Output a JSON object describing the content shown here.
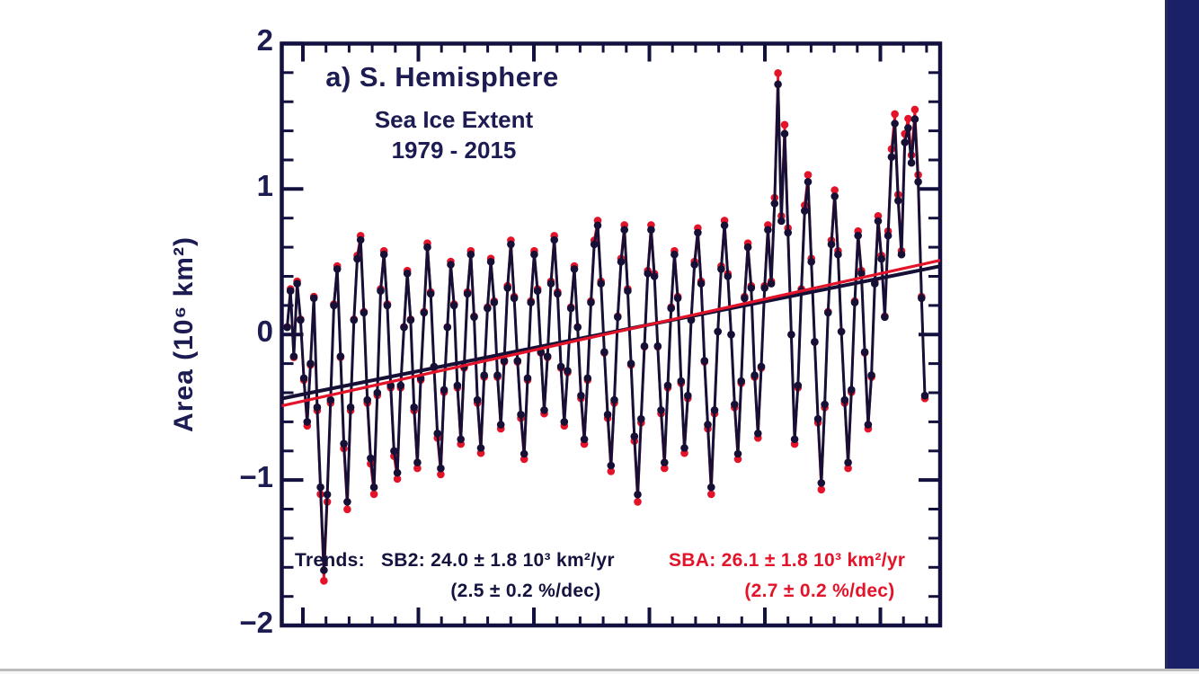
{
  "figure": {
    "title": "a)  S. Hemisphere",
    "subtitle": "Sea Ice Extent",
    "period": "1979 - 2015",
    "ylabel": "Area (10⁶ km²)",
    "colors": {
      "navy_text": "#1c1b52",
      "frame": "#12103e",
      "sb2_dark": "#171036",
      "sba_red": "#e3142a",
      "right_band": "#1a2167",
      "bottom_rule_grey": "#bcbcbc"
    }
  },
  "annotations": {
    "trends_label": "Trends:",
    "sb2_line1": "SB2: 24.0 ± 1.8 10³ km²/yr",
    "sb2_line2": "(2.5 ± 0.2  %/dec)",
    "sba_line1": "SBA: 26.1 ± 1.8 10³ km²/yr",
    "sba_line2": "(2.7 ± 0.2  %/dec)"
  },
  "chart_data": {
    "type": "line",
    "title": "a) S. Hemisphere — Sea Ice Extent 1979 - 2015",
    "ylabel": "Area (10⁶ km²)",
    "ylim": [
      -2,
      2
    ],
    "y_major_ticks": [
      2,
      1,
      0,
      -1,
      -2
    ],
    "y_minor_step": 0.2,
    "x_range_years": [
      1979,
      2016.3
    ],
    "x_ticks_labeled": false,
    "grid": false,
    "legend": "annotation text inside plot (SB2 black, SBA red)",
    "series": [
      {
        "name": "SB2",
        "color": "#171036",
        "kind": "monthly anomaly, dots + connecting line",
        "x_start_year": 1979.0,
        "x_end_year": 2015.5,
        "values": [
          0.05,
          0.3,
          -0.15,
          0.35,
          0.1,
          -0.3,
          -0.6,
          -0.2,
          0.25,
          -0.5,
          -1.05,
          -1.62,
          -1.1,
          -0.45,
          0.2,
          0.45,
          -0.15,
          -0.75,
          -1.15,
          -0.5,
          0.1,
          0.52,
          0.65,
          0.15,
          -0.45,
          -0.85,
          -1.05,
          -0.4,
          0.3,
          0.55,
          0.2,
          -0.35,
          -0.8,
          -0.95,
          -0.35,
          0.05,
          0.42,
          0.1,
          -0.5,
          -0.88,
          -0.3,
          0.15,
          0.6,
          0.28,
          -0.22,
          -0.68,
          -0.92,
          -0.38,
          0.05,
          0.48,
          0.2,
          -0.35,
          -0.72,
          -0.22,
          0.28,
          0.55,
          0.12,
          -0.45,
          -0.78,
          -0.28,
          0.18,
          0.5,
          0.22,
          -0.28,
          -0.62,
          -0.18,
          0.32,
          0.62,
          0.25,
          -0.18,
          -0.55,
          -0.82,
          -0.3,
          0.22,
          0.55,
          0.3,
          -0.12,
          -0.52,
          -0.15,
          0.35,
          0.65,
          0.28,
          -0.22,
          -0.6,
          -0.25,
          0.18,
          0.45,
          0.05,
          -0.42,
          -0.72,
          -0.3,
          0.22,
          0.62,
          0.75,
          0.35,
          -0.12,
          -0.55,
          -0.9,
          -0.45,
          0.12,
          0.5,
          0.72,
          0.3,
          -0.2,
          -0.7,
          -1.1,
          -0.58,
          -0.08,
          0.42,
          0.72,
          0.4,
          -0.08,
          -0.52,
          -0.88,
          -0.35,
          0.18,
          0.55,
          0.25,
          -0.32,
          -0.78,
          -0.42,
          0.1,
          0.48,
          0.7,
          0.35,
          -0.18,
          -0.62,
          -1.05,
          -0.52,
          0.02,
          0.45,
          0.75,
          0.4,
          0.0,
          -0.48,
          -0.82,
          -0.32,
          0.25,
          0.6,
          0.32,
          -0.28,
          -0.68,
          -0.22,
          0.32,
          0.72,
          0.35,
          0.9,
          1.72,
          0.78,
          1.38,
          0.7,
          0.0,
          -0.72,
          -0.35,
          0.3,
          0.85,
          1.05,
          0.5,
          -0.05,
          -0.58,
          -1.02,
          -0.48,
          0.15,
          0.62,
          0.95,
          0.55,
          0.02,
          -0.45,
          -0.88,
          -0.38,
          0.22,
          0.68,
          0.42,
          -0.12,
          -0.62,
          -0.28,
          0.35,
          0.78,
          0.52,
          0.12,
          0.68,
          1.22,
          1.45,
          0.92,
          0.55,
          1.32,
          1.42,
          1.18,
          1.48,
          1.05,
          0.25,
          -0.42
        ]
      },
      {
        "name": "SBA",
        "color": "#e3142a",
        "kind": "monthly anomaly, dots + connecting line (nearly identical to SB2, slightly larger amplitude; visible peeking at extremes)",
        "derived_from": "SB2",
        "amplitude_factor": 1.045
      }
    ],
    "trend_lines": [
      {
        "name": "SB2",
        "color": "#171036",
        "slope_label": "24.0 ± 1.8 10³ km²/yr (2.5 ± 0.2 %/dec)",
        "start_value": -0.44,
        "end_value": 0.47
      },
      {
        "name": "SBA",
        "color": "#e3142a",
        "slope_label": "26.1 ± 1.8 10³ km²/yr (2.7 ± 0.2 %/dec)",
        "start_value": -0.49,
        "end_value": 0.51
      }
    ]
  }
}
